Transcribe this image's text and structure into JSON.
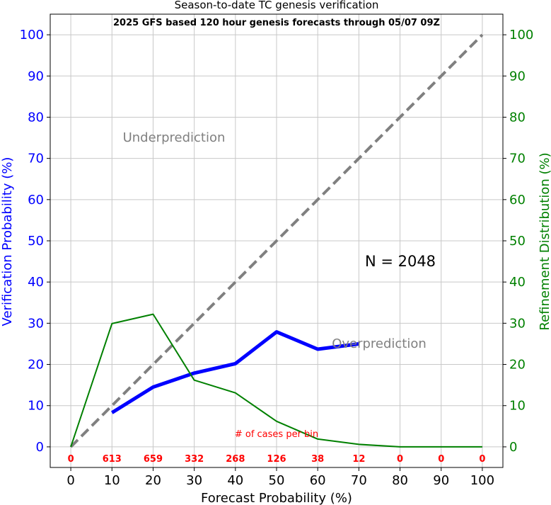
{
  "chart_data": {
    "type": "line",
    "title": "Season-to-date TC genesis verification",
    "subtitle": "2025 GFS based 120 hour genesis forecasts through 05/07 09Z",
    "xlabel": "Forecast Probability (%)",
    "ylabel_left": "Verification Probability (%)",
    "ylabel_right": "Refinement Distribution (%)",
    "xlim": [
      -5,
      105
    ],
    "ylim": [
      -5,
      105
    ],
    "x_ticks": [
      "0",
      "10",
      "20",
      "30",
      "40",
      "50",
      "60",
      "70",
      "80",
      "90",
      "100"
    ],
    "y_ticks_left": [
      "0",
      "10",
      "20",
      "30",
      "40",
      "50",
      "60",
      "70",
      "80",
      "90",
      "100"
    ],
    "y_ticks_right": [
      "0",
      "10",
      "20",
      "30",
      "40",
      "50",
      "60",
      "70",
      "80",
      "90",
      "100"
    ],
    "grid": true,
    "series": [
      {
        "color": "#808080",
        "style": "dashed",
        "x": [
          0,
          100
        ],
        "y": [
          0,
          100
        ]
      },
      {
        "color": "#0000ff",
        "style": "thick",
        "x": [
          10,
          20,
          30,
          40,
          50,
          60,
          70
        ],
        "y": [
          8.3,
          14.5,
          17.9,
          20.2,
          27.9,
          23.7,
          25.0
        ]
      },
      {
        "color": "#008000",
        "style": "solid",
        "x": [
          0,
          10,
          20,
          30,
          40,
          50,
          60,
          70,
          80,
          90,
          100
        ],
        "y": [
          0,
          29.9,
          32.2,
          16.2,
          13.1,
          6.2,
          1.9,
          0.6,
          0,
          0,
          0
        ]
      }
    ],
    "annotations": {
      "underprediction": "Underprediction",
      "overprediction": "Overprediction",
      "n_label": "N = 2048",
      "cases_label": "# of cases per bin"
    },
    "case_counts": [
      "0",
      "613",
      "659",
      "332",
      "268",
      "126",
      "38",
      "12",
      "0",
      "0",
      "0"
    ]
  }
}
